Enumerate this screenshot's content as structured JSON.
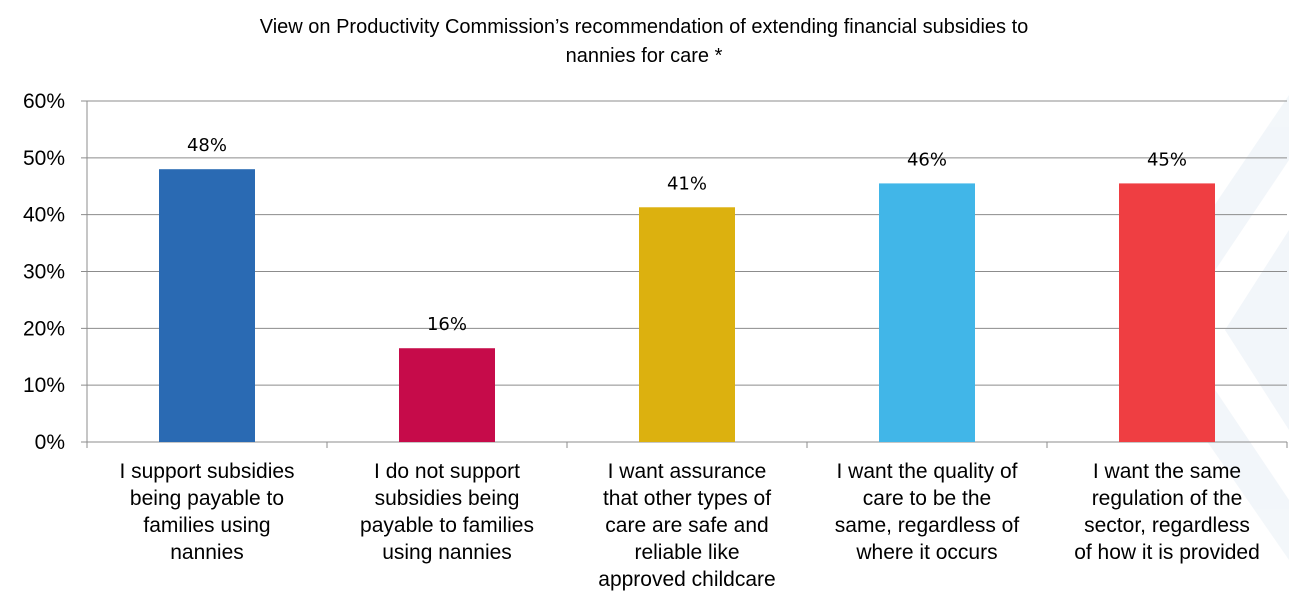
{
  "chart_data": {
    "type": "bar",
    "title_lines": [
      "View on Productivity Commission’s recommendation of extending financial subsidies to",
      "nannies for care *"
    ],
    "xlabel": "",
    "ylabel": "",
    "ylim": [
      0,
      60
    ],
    "yticks": [
      "0%",
      "10%",
      "20%",
      "30%",
      "40%",
      "50%",
      "60%"
    ],
    "grid": true,
    "legend": "none",
    "categories": [
      [
        "I support subsidies",
        "being payable to",
        "families using",
        "nannies"
      ],
      [
        "I do not support",
        "subsidies being",
        "payable to families",
        "using nannies"
      ],
      [
        "I want assurance",
        "that other types of",
        "care are safe and",
        "reliable like",
        "approved childcare"
      ],
      [
        "I want the quality of",
        "care to be the",
        "same, regardless of",
        "where it occurs"
      ],
      [
        "I want the same",
        "regulation of the",
        "sector, regardless",
        "of how it is provided"
      ]
    ],
    "values": [
      48,
      16.5,
      41.3,
      45.5,
      45.5
    ],
    "data_labels": [
      "48%",
      "16%",
      "41%",
      "46%",
      "45%"
    ],
    "colors": [
      "#2a6ab3",
      "#c60b4a",
      "#dcb10f",
      "#41b6e8",
      "#ef3e42"
    ]
  }
}
